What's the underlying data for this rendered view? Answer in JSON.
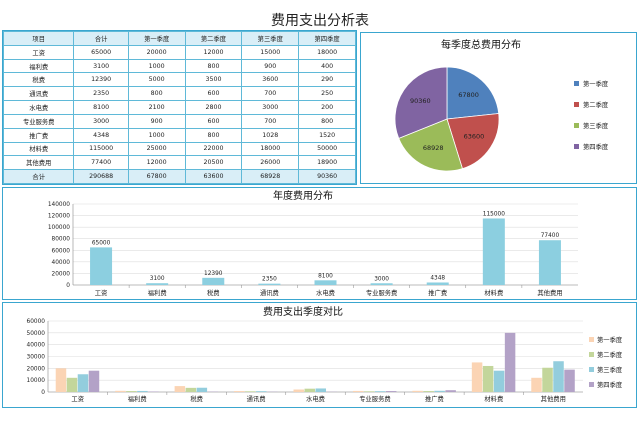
{
  "page_title": "费用支出分析表",
  "table": {
    "headers": [
      "项目",
      "合计",
      "第一季度",
      "第二季度",
      "第三季度",
      "第四季度"
    ],
    "rows": [
      [
        "工资",
        "65000",
        "20000",
        "12000",
        "15000",
        "18000"
      ],
      [
        "福利费",
        "3100",
        "1000",
        "800",
        "900",
        "400"
      ],
      [
        "税费",
        "12390",
        "5000",
        "3500",
        "3600",
        "290"
      ],
      [
        "通讯费",
        "2350",
        "800",
        "600",
        "700",
        "250"
      ],
      [
        "水电费",
        "8100",
        "2100",
        "2800",
        "3000",
        "200"
      ],
      [
        "专业服务费",
        "3000",
        "900",
        "600",
        "700",
        "800"
      ],
      [
        "推广费",
        "4348",
        "1000",
        "800",
        "1028",
        "1520"
      ],
      [
        "材料费",
        "115000",
        "25000",
        "22000",
        "18000",
        "50000"
      ],
      [
        "其他费用",
        "77400",
        "12000",
        "20500",
        "26000",
        "18900"
      ]
    ],
    "total": [
      "合计",
      "290688",
      "67800",
      "63600",
      "68928",
      "90360"
    ]
  },
  "colors": {
    "panel_border": "#3aa6cf",
    "table_header_bg": "#d9eef7",
    "annual_bar": "#8ccfe0",
    "q1": "#4f81bd",
    "q2": "#c0504d",
    "q3": "#9bbb59",
    "q4": "#8064a2",
    "qb1": "#fbd4b4",
    "qb2": "#c3d69b",
    "qb3": "#93cddd",
    "qb4": "#b3a2c7"
  },
  "chart_data": [
    {
      "type": "pie",
      "title": "每季度总费用分布",
      "categories": [
        "第一季度",
        "第二季度",
        "第三季度",
        "第四季度"
      ],
      "values": [
        67800,
        63600,
        68928,
        90360
      ],
      "data_labels": [
        "67800",
        "63600",
        "68928",
        "90360"
      ],
      "legend": "right"
    },
    {
      "type": "bar",
      "title": "年度费用分布",
      "categories": [
        "工资",
        "福利费",
        "税费",
        "通讯费",
        "水电费",
        "专业服务费",
        "推广费",
        "材料费",
        "其他费用"
      ],
      "values": [
        65000,
        3100,
        12390,
        2350,
        8100,
        3000,
        4348,
        115000,
        77400
      ],
      "data_labels": [
        "65000",
        "3100",
        "12390",
        "2350",
        "8100",
        "3000",
        "4348",
        "115000",
        "77400"
      ],
      "ylim": [
        0,
        140000
      ],
      "yticks": [
        "0",
        "20000",
        "40000",
        "60000",
        "80000",
        "100000",
        "120000",
        "140000"
      ],
      "yticks_values": [
        0,
        20000,
        40000,
        60000,
        80000,
        100000,
        120000,
        140000
      ],
      "grid": true,
      "legend": "none"
    },
    {
      "type": "bar",
      "title": "费用支出季度对比",
      "categories": [
        "工资",
        "福利费",
        "税费",
        "通讯费",
        "水电费",
        "专业服务费",
        "推广费",
        "材料费",
        "其他费用"
      ],
      "series": [
        {
          "name": "第一季度",
          "values": [
            20000,
            1000,
            5000,
            800,
            2100,
            900,
            1000,
            25000,
            12000
          ]
        },
        {
          "name": "第二季度",
          "values": [
            12000,
            800,
            3500,
            600,
            2800,
            600,
            800,
            22000,
            20500
          ]
        },
        {
          "name": "第三季度",
          "values": [
            15000,
            900,
            3600,
            700,
            3000,
            700,
            1028,
            18000,
            26000
          ]
        },
        {
          "name": "第四季度",
          "values": [
            18000,
            400,
            290,
            250,
            200,
            800,
            1520,
            50000,
            18900
          ]
        }
      ],
      "ylim": [
        0,
        60000
      ],
      "yticks": [
        "0",
        "10000",
        "20000",
        "30000",
        "40000",
        "50000",
        "60000"
      ],
      "yticks_values": [
        0,
        10000,
        20000,
        30000,
        40000,
        50000,
        60000
      ],
      "grid": true,
      "legend": "right"
    }
  ]
}
